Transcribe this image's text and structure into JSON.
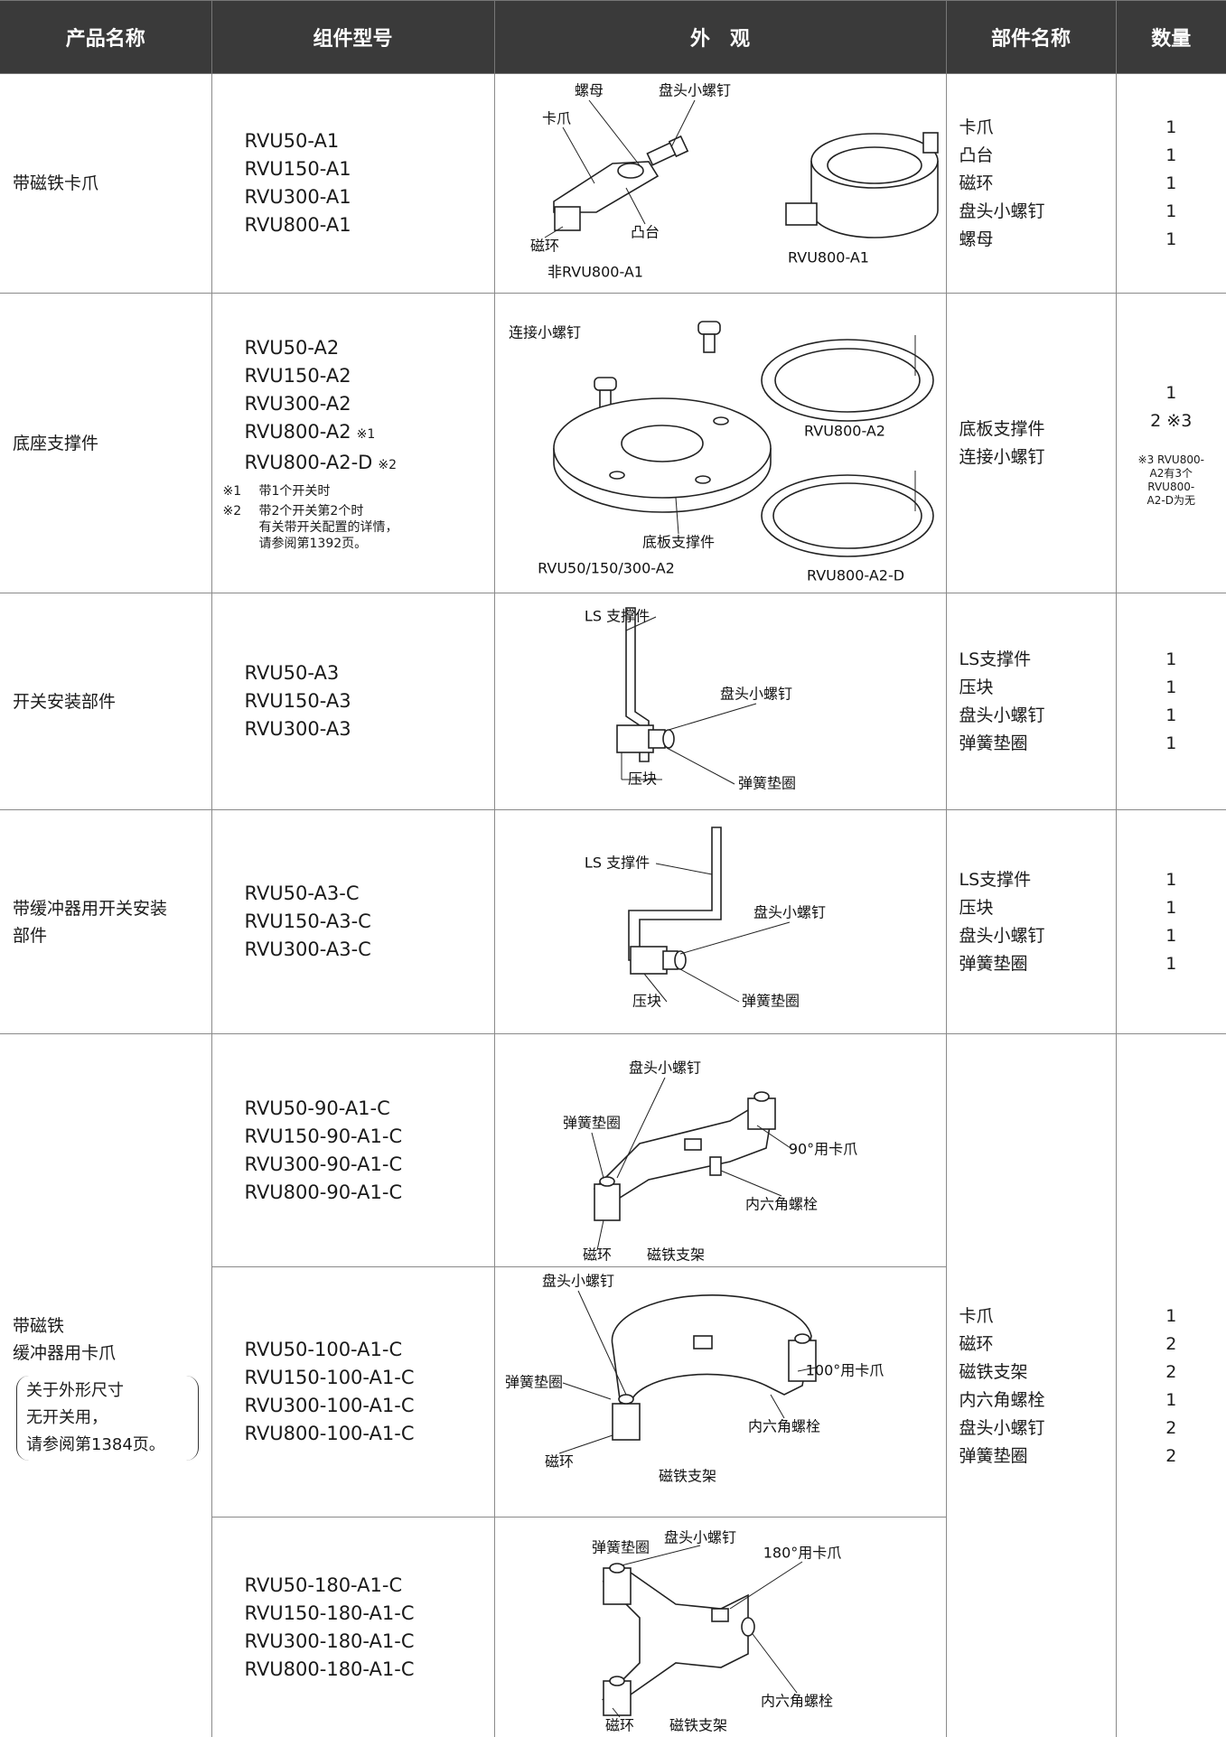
{
  "table": {
    "headers": [
      "产品名称",
      "组件型号",
      "外　观",
      "部件名称",
      "数量"
    ],
    "rows": [
      {
        "product": [
          "带磁铁卡爪"
        ],
        "models": [
          "RVU50-A1",
          "RVU150-A1",
          "RVU300-A1",
          "RVU800-A1"
        ],
        "figure": [
          "螺母",
          "盘头小螺钉",
          "卡爪",
          "磁环",
          "凸台",
          "非RVU800-A1",
          "RVU800-A1"
        ],
        "parts": [
          "卡爪",
          "凸台",
          "磁环",
          "盘头小螺钉",
          "螺母"
        ],
        "quantities": [
          1,
          1,
          1,
          1,
          1
        ]
      },
      {
        "product": [
          "底座支撑件"
        ],
        "models": [
          "RVU50-A2",
          "RVU150-A2",
          "RVU300-A2",
          {
            "text": "RVU800-A2",
            "mark": "※1"
          },
          {
            "text": "RVU800-A2-D",
            "mark": "※2"
          }
        ],
        "notes": [
          {
            "mark": "※1",
            "lines": [
              "带1个开关时"
            ]
          },
          {
            "mark": "※2",
            "lines": [
              "带2个开关第2个时",
              "有关带开关配置的详情，",
              "请参阅第1392页。"
            ]
          }
        ],
        "figure": [
          "连接小螺钉",
          "RVU800-A2",
          "底板支撑件",
          "RVU50/150/300-A2",
          "RVU800-A2-D"
        ],
        "parts": [
          "底板支撑件",
          "连接小螺钉"
        ],
        "quantities": [
          1,
          "2 ※3"
        ],
        "quantity_note": [
          "※3 RVU800-",
          "A2有3个",
          "RVU800-",
          "A2-D为无"
        ]
      },
      {
        "product": [
          "开关安装部件"
        ],
        "models": [
          "RVU50-A3",
          "RVU150-A3",
          "RVU300-A3"
        ],
        "figure": [
          "LS 支撑件",
          "盘头小螺钉",
          "压块",
          "弹簧垫圈"
        ],
        "parts": [
          "LS支撑件",
          "压块",
          "盘头小螺钉",
          "弹簧垫圈"
        ],
        "quantities": [
          1,
          1,
          1,
          1
        ]
      },
      {
        "product": [
          "带缓冲器用开关安装",
          "部件"
        ],
        "models": [
          "RVU50-A3-C",
          "RVU150-A3-C",
          "RVU300-A3-C"
        ],
        "figure": [
          "LS 支撑件",
          "盘头小螺钉",
          "压块",
          "弹簧垫圈"
        ],
        "parts": [
          "LS支撑件",
          "压块",
          "盘头小螺钉",
          "弹簧垫圈"
        ],
        "quantities": [
          1,
          1,
          1,
          1
        ]
      },
      {
        "product": [
          "带磁铁",
          "缓冲器用卡爪"
        ],
        "product_note": [
          "关于外形尺寸",
          "无开关用，",
          "请参阅第1384页。"
        ],
        "variants": [
          {
            "models": [
              "RVU50-90-A1-C",
              "RVU150-90-A1-C",
              "RVU300-90-A1-C",
              "RVU800-90-A1-C"
            ],
            "figure": [
              "盘头小螺钉",
              "弹簧垫圈",
              "90°用卡爪",
              "内六角螺栓",
              "磁环",
              "磁铁支架"
            ]
          },
          {
            "models": [
              "RVU50-100-A1-C",
              "RVU150-100-A1-C",
              "RVU300-100-A1-C",
              "RVU800-100-A1-C"
            ],
            "figure": [
              "盘头小螺钉",
              "弹簧垫圈",
              "100°用卡爪",
              "内六角螺栓",
              "磁环",
              "磁铁支架"
            ]
          },
          {
            "models": [
              "RVU50-180-A1-C",
              "RVU150-180-A1-C",
              "RVU300-180-A1-C",
              "RVU800-180-A1-C"
            ],
            "figure": [
              "盘头小螺钉",
              "弹簧垫圈",
              "180°用卡爪",
              "内六角螺栓",
              "磁环",
              "磁铁支架"
            ]
          }
        ],
        "parts": [
          "卡爪",
          "磁环",
          "磁铁支架",
          "内六角螺栓",
          "盘头小螺钉",
          "弹簧垫圈"
        ],
        "quantities": [
          1,
          2,
          2,
          1,
          2,
          2
        ]
      }
    ]
  }
}
